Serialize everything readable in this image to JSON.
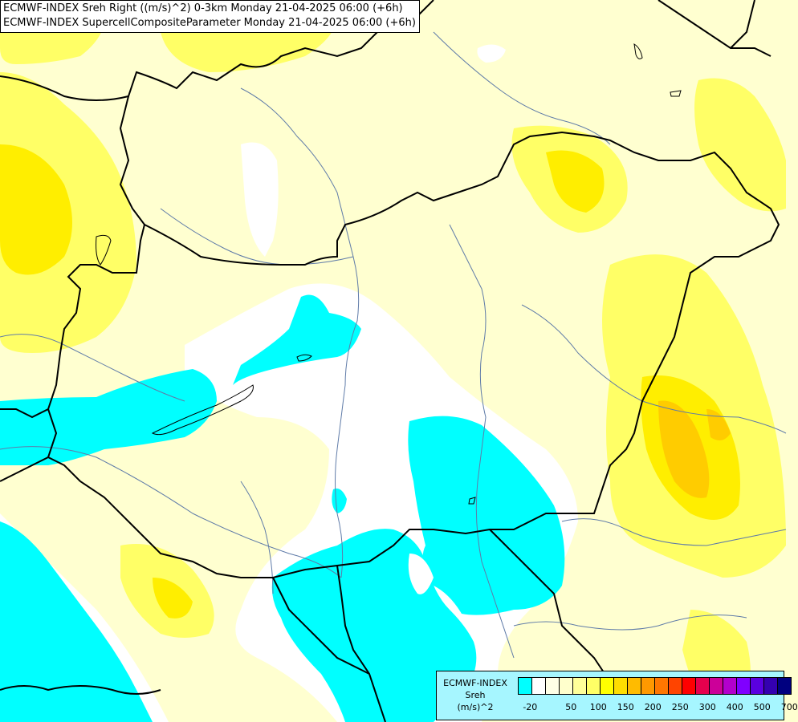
{
  "title": {
    "line1": "ECMWF-INDEX Sreh Right ((m/s)^2) 0-3km Monday 21-04-2025 06:00 (+6h)",
    "line2": "ECMWF-INDEX SupercellCompositeParameter Monday 21-04-2025 06:00 (+6h)"
  },
  "colors": {
    "background": "#ffffd0",
    "white": "#ffffff",
    "cyan": "#00ffff",
    "pale_yellow": "#ffff99",
    "yellow": "#ffff33",
    "gold": "#ffdd00",
    "orange": "#ffbb00",
    "border_line": "#000000",
    "river_line": "#5f7ba8"
  },
  "legend": {
    "line1": "ECMWF-INDEX",
    "line2": "Sreh",
    "line3": "(m/s)^2",
    "swatches": [
      "#00ffff",
      "#ffffff",
      "#ffffe6",
      "#ffffcc",
      "#ffff99",
      "#ffff66",
      "#ffff00",
      "#ffdd00",
      "#ffbb00",
      "#ff9900",
      "#ff7700",
      "#ff4400",
      "#ff0000",
      "#e6004d",
      "#cc0099",
      "#b300cc",
      "#8000ff",
      "#5a00e0",
      "#3400b0",
      "#00007f"
    ],
    "labels": [
      "-20",
      "50",
      "100",
      "150",
      "200",
      "250",
      "300",
      "400",
      "500",
      "700"
    ]
  }
}
